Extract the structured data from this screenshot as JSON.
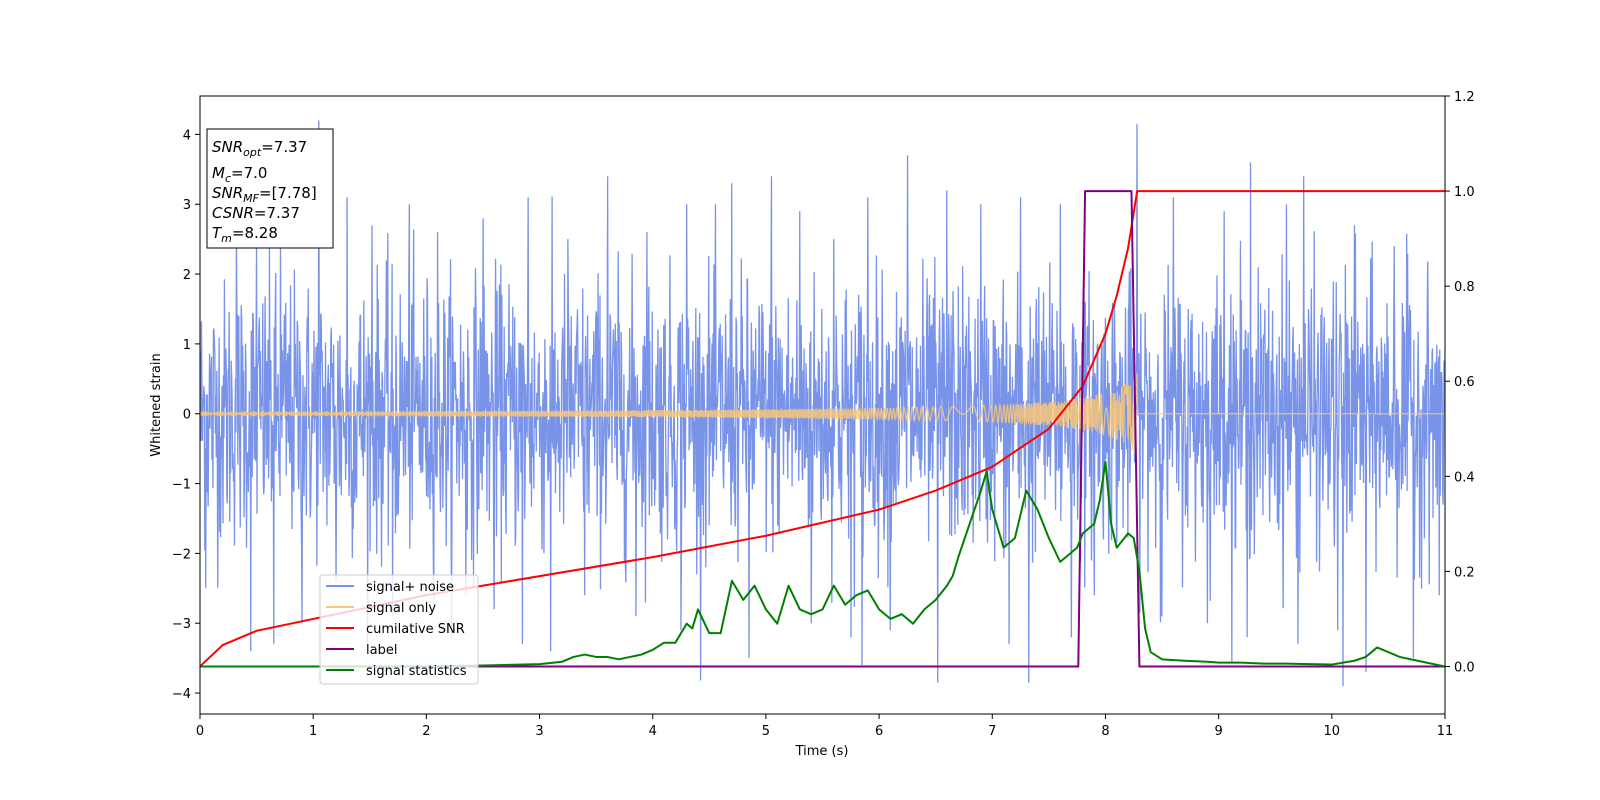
{
  "chart_data": {
    "type": "line",
    "xlabel": "Time (s)",
    "ylabel_left": "Whitened strain",
    "ylabel_right": "",
    "xlim": [
      0,
      11
    ],
    "ylim_left": [
      -4.3,
      4.55
    ],
    "ylim_right": [
      -0.1,
      1.2
    ],
    "x_ticks": [
      "0",
      "1",
      "2",
      "3",
      "4",
      "5",
      "6",
      "7",
      "8",
      "9",
      "10",
      "11"
    ],
    "y_left_ticks": [
      "−4",
      "−3",
      "−2",
      "−1",
      "0",
      "1",
      "2",
      "3",
      "4"
    ],
    "y_right_ticks": [
      "0.0",
      "0.2",
      "0.4",
      "0.6",
      "0.8",
      "1.0",
      "1.2"
    ],
    "grid": false,
    "legend_position": "lower-left",
    "info_box": {
      "snr_opt": "=7.37",
      "mc": "=7.0",
      "snr_mf": "=[7.78]",
      "csnr": "=7.37",
      "tm": "=8.28"
    },
    "series": [
      {
        "name": "signal+ noise",
        "axis": "left",
        "color": "#7893e8",
        "description_values": {
          "kind": "noise",
          "band_typical": [
            -1.9,
            1.9
          ],
          "spikes_high": [
            [
              0.05,
              2.2
            ],
            [
              0.32,
              2.7
            ],
            [
              0.5,
              2.4
            ],
            [
              0.71,
              2.5
            ],
            [
              1.05,
              4.2
            ],
            [
              1.3,
              3.1
            ],
            [
              1.52,
              2.7
            ],
            [
              1.85,
              3.0
            ],
            [
              2.1,
              2.6
            ],
            [
              2.5,
              2.8
            ],
            [
              2.9,
              3.1
            ],
            [
              3.25,
              2.5
            ],
            [
              3.6,
              3.4
            ],
            [
              3.95,
              2.6
            ],
            [
              4.3,
              3.0
            ],
            [
              4.7,
              3.3
            ],
            [
              5.05,
              3.4
            ],
            [
              5.3,
              2.9
            ],
            [
              5.6,
              2.5
            ],
            [
              5.9,
              3.1
            ],
            [
              6.25,
              3.7
            ],
            [
              6.6,
              3.2
            ],
            [
              6.9,
              3.0
            ],
            [
              7.25,
              3.1
            ],
            [
              7.6,
              3.0
            ],
            [
              8.28,
              4.15
            ],
            [
              8.6,
              3.1
            ],
            [
              9.05,
              2.9
            ],
            [
              9.28,
              3.6
            ],
            [
              9.6,
              3.0
            ],
            [
              9.75,
              3.4
            ],
            [
              10.2,
              2.7
            ],
            [
              10.55,
              2.4
            ],
            [
              10.95,
              2.7
            ]
          ],
          "spikes_low": [
            [
              0.05,
              -2.5
            ],
            [
              0.45,
              -3.4
            ],
            [
              0.65,
              -3.3
            ],
            [
              0.9,
              -3.0
            ],
            [
              1.2,
              -2.4
            ],
            [
              1.7,
              -2.9
            ],
            [
              2.35,
              -2.6
            ],
            [
              2.6,
              -2.8
            ],
            [
              2.85,
              -3.3
            ],
            [
              3.1,
              -3.4
            ],
            [
              3.4,
              -2.6
            ],
            [
              3.85,
              -2.9
            ],
            [
              4.25,
              -3.1
            ],
            [
              4.85,
              -3.5
            ],
            [
              5.4,
              -3.0
            ],
            [
              5.75,
              -3.2
            ],
            [
              5.85,
              -3.6
            ],
            [
              6.1,
              -3.1
            ],
            [
              6.52,
              -3.85
            ],
            [
              7.15,
              -3.3
            ],
            [
              7.32,
              -3.85
            ],
            [
              7.7,
              -3.2
            ],
            [
              7.9,
              -2.6
            ],
            [
              8.5,
              -2.9
            ],
            [
              8.9,
              -3.0
            ],
            [
              9.25,
              -3.2
            ],
            [
              9.7,
              -3.3
            ],
            [
              10.05,
              -3.1
            ],
            [
              10.1,
              -3.9
            ],
            [
              10.3,
              -3.7
            ],
            [
              10.72,
              -3.5
            ],
            [
              10.95,
              -2.6
            ]
          ]
        }
      },
      {
        "name": "signal only",
        "axis": "left",
        "color": "#f8c77a",
        "description_values": {
          "kind": "chirp",
          "t_merge": 8.28,
          "amplitude_points": [
            [
              0,
              0.03
            ],
            [
              4,
              0.05
            ],
            [
              6,
              0.08
            ],
            [
              7,
              0.12
            ],
            [
              7.6,
              0.18
            ],
            [
              8.0,
              0.3
            ],
            [
              8.2,
              0.45
            ],
            [
              8.28,
              0.6
            ],
            [
              8.3,
              0.0
            ],
            [
              11,
              0.0
            ]
          ]
        }
      },
      {
        "name": "cumilative SNR",
        "axis": "right",
        "color": "#ff0000",
        "x": [
          0.0,
          0.2,
          0.5,
          1.0,
          2.0,
          3.0,
          4.0,
          5.0,
          6.0,
          6.5,
          7.0,
          7.5,
          7.8,
          8.0,
          8.1,
          8.2,
          8.28,
          8.29,
          11.0
        ],
        "y": [
          0.0,
          0.045,
          0.075,
          0.1,
          0.15,
          0.19,
          0.23,
          0.275,
          0.33,
          0.37,
          0.42,
          0.5,
          0.59,
          0.7,
          0.78,
          0.88,
          1.0,
          1.0,
          1.0
        ]
      },
      {
        "name": "label",
        "axis": "right",
        "color": "#800080",
        "x": [
          0.0,
          7.76,
          7.82,
          8.23,
          8.3,
          11.0
        ],
        "y": [
          0.0,
          0.0,
          1.0,
          1.0,
          0.0,
          0.0
        ]
      },
      {
        "name": "signal statistics",
        "axis": "right",
        "color": "#008000",
        "x": [
          0.0,
          0.5,
          1.0,
          1.5,
          2.0,
          2.5,
          3.0,
          3.2,
          3.3,
          3.4,
          3.5,
          3.6,
          3.7,
          3.8,
          3.9,
          4.0,
          4.1,
          4.2,
          4.3,
          4.35,
          4.4,
          4.5,
          4.6,
          4.7,
          4.8,
          4.9,
          5.0,
          5.1,
          5.2,
          5.3,
          5.4,
          5.5,
          5.6,
          5.7,
          5.8,
          5.9,
          6.0,
          6.1,
          6.2,
          6.3,
          6.4,
          6.5,
          6.6,
          6.65,
          6.7,
          6.8,
          6.9,
          6.95,
          7.0,
          7.1,
          7.2,
          7.25,
          7.3,
          7.4,
          7.5,
          7.6,
          7.7,
          7.75,
          7.8,
          7.9,
          7.95,
          8.0,
          8.05,
          8.1,
          8.2,
          8.25,
          8.3,
          8.35,
          8.4,
          8.5,
          8.7,
          8.9,
          9.0,
          9.2,
          9.4,
          9.6,
          9.8,
          10.0,
          10.1,
          10.2,
          10.3,
          10.4,
          10.5,
          10.6,
          10.8,
          11.0
        ],
        "y": [
          0.0,
          0.0,
          0.0,
          0.0,
          0.0,
          0.002,
          0.005,
          0.01,
          0.02,
          0.025,
          0.02,
          0.02,
          0.015,
          0.02,
          0.025,
          0.035,
          0.05,
          0.05,
          0.09,
          0.08,
          0.12,
          0.07,
          0.07,
          0.18,
          0.14,
          0.17,
          0.12,
          0.09,
          0.17,
          0.12,
          0.11,
          0.12,
          0.17,
          0.13,
          0.15,
          0.16,
          0.12,
          0.1,
          0.11,
          0.09,
          0.12,
          0.14,
          0.17,
          0.19,
          0.23,
          0.3,
          0.37,
          0.41,
          0.33,
          0.25,
          0.27,
          0.32,
          0.37,
          0.33,
          0.27,
          0.22,
          0.24,
          0.25,
          0.28,
          0.3,
          0.35,
          0.43,
          0.3,
          0.25,
          0.28,
          0.27,
          0.2,
          0.08,
          0.03,
          0.015,
          0.012,
          0.01,
          0.008,
          0.008,
          0.006,
          0.006,
          0.005,
          0.004,
          0.008,
          0.012,
          0.02,
          0.04,
          0.03,
          0.02,
          0.01,
          0.0
        ]
      }
    ]
  },
  "legend": {
    "items": [
      {
        "label": "signal+ noise",
        "color": "#7893e8"
      },
      {
        "label": "signal only",
        "color": "#f8c77a"
      },
      {
        "label": "cumilative SNR",
        "color": "#ff0000"
      },
      {
        "label": "label",
        "color": "#800080"
      },
      {
        "label": "signal statistics",
        "color": "#008000"
      }
    ]
  }
}
